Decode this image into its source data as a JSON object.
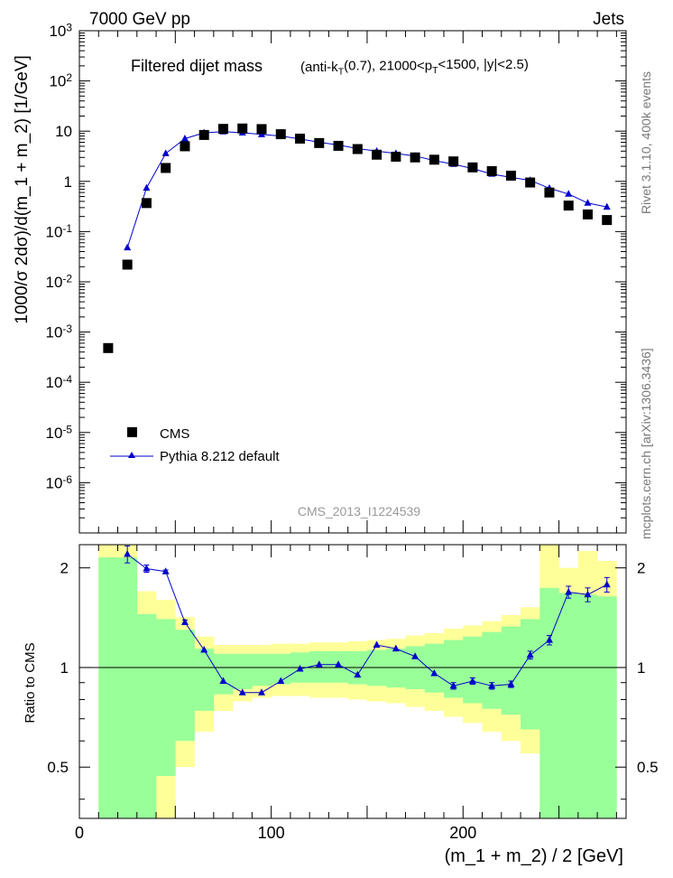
{
  "header": {
    "left": "7000 GeV pp",
    "right": "Jets"
  },
  "side_labels": {
    "rivet": "Rivet 3.1.10,  400k events",
    "mcplots": "mcplots.cern.ch [arXiv:1306.3436]"
  },
  "watermark": "CMS_2013_I1224539",
  "colors": {
    "cms": "#000000",
    "pythia": "#0000cc",
    "band_green": "#99ff99",
    "band_yellow": "#ffff99"
  },
  "chart_data": [
    {
      "type": "scatter",
      "title": "Filtered dijet mass",
      "subtitle": "(anti-k_T(0.7), 21000<p_T<1500, |y|<2.5)",
      "ylabel": "1000/σ 2dσ)/d(m_1 + m_2) [1/GeV]",
      "xlim": [
        0,
        285
      ],
      "ylim": [
        1e-07,
        1000
      ],
      "yscale": "log",
      "ytick_labels": [
        "10^-6",
        "10^-5",
        "10^-4",
        "10^-3",
        "10^-2",
        "10^-1",
        "1",
        "10",
        "10^2",
        "10^3"
      ],
      "x": [
        15,
        25,
        35,
        45,
        55,
        65,
        75,
        85,
        95,
        105,
        115,
        125,
        135,
        145,
        155,
        165,
        175,
        185,
        195,
        205,
        215,
        225,
        235,
        245,
        255,
        265,
        275
      ],
      "series": [
        {
          "name": "CMS",
          "marker": "square",
          "values": [
            0.00048,
            0.022,
            0.37,
            1.85,
            5.0,
            8.4,
            11.1,
            11.3,
            11.0,
            8.7,
            7.1,
            5.8,
            5.1,
            4.4,
            3.4,
            3.1,
            3.0,
            2.7,
            2.5,
            1.9,
            1.6,
            1.3,
            0.95,
            0.6,
            0.33,
            0.22,
            0.17
          ]
        },
        {
          "name": "Pythia 8.212 default",
          "marker": "triangle",
          "values": [
            null,
            0.048,
            0.74,
            3.6,
            7.1,
            9.3,
            9.8,
            9.3,
            8.6,
            8.0,
            7.0,
            6.0,
            5.3,
            4.5,
            4.0,
            3.6,
            3.2,
            2.6,
            2.2,
            1.8,
            1.4,
            1.2,
            1.05,
            0.73,
            0.56,
            0.37,
            0.31
          ]
        }
      ]
    },
    {
      "type": "scatter",
      "title": "",
      "ylabel": "Ratio to CMS",
      "xlabel": "(m_1 + m_2) / 2 [GeV]",
      "xlim": [
        0,
        285
      ],
      "ylim": [
        0.35,
        2.35
      ],
      "yscale": "log",
      "x_ticks": [
        0,
        100,
        200
      ],
      "y_ticks": [
        "0.5",
        "1",
        "2"
      ],
      "reference_line": 1,
      "band_edges": [
        10,
        20,
        30,
        40,
        50,
        60,
        70,
        80,
        90,
        100,
        110,
        120,
        130,
        140,
        150,
        160,
        170,
        180,
        190,
        200,
        210,
        220,
        230,
        240,
        250,
        260,
        270,
        280
      ],
      "band_green": [
        [
          0.35,
          2.15
        ],
        [
          0.35,
          2.15
        ],
        [
          0.35,
          1.45
        ],
        [
          0.47,
          1.4
        ],
        [
          0.6,
          1.3
        ],
        [
          0.74,
          1.14
        ],
        [
          0.83,
          1.1
        ],
        [
          0.86,
          1.1
        ],
        [
          0.88,
          1.1
        ],
        [
          0.89,
          1.1
        ],
        [
          0.9,
          1.11
        ],
        [
          0.9,
          1.12
        ],
        [
          0.9,
          1.12
        ],
        [
          0.89,
          1.12
        ],
        [
          0.88,
          1.13
        ],
        [
          0.87,
          1.14
        ],
        [
          0.86,
          1.16
        ],
        [
          0.84,
          1.18
        ],
        [
          0.81,
          1.21
        ],
        [
          0.78,
          1.24
        ],
        [
          0.75,
          1.28
        ],
        [
          0.72,
          1.33
        ],
        [
          0.65,
          1.4
        ],
        [
          0.35,
          1.74
        ],
        [
          0.35,
          1.68
        ],
        [
          0.35,
          1.66
        ],
        [
          0.35,
          1.64
        ]
      ],
      "band_yellow": [
        [
          0.35,
          2.35
        ],
        [
          0.35,
          2.35
        ],
        [
          0.35,
          1.7
        ],
        [
          0.35,
          1.6
        ],
        [
          0.5,
          1.42
        ],
        [
          0.64,
          1.24
        ],
        [
          0.74,
          1.17
        ],
        [
          0.79,
          1.17
        ],
        [
          0.81,
          1.17
        ],
        [
          0.82,
          1.18
        ],
        [
          0.82,
          1.18
        ],
        [
          0.81,
          1.19
        ],
        [
          0.81,
          1.19
        ],
        [
          0.8,
          1.2
        ],
        [
          0.79,
          1.21
        ],
        [
          0.78,
          1.22
        ],
        [
          0.76,
          1.25
        ],
        [
          0.74,
          1.27
        ],
        [
          0.71,
          1.31
        ],
        [
          0.68,
          1.34
        ],
        [
          0.64,
          1.38
        ],
        [
          0.6,
          1.44
        ],
        [
          0.55,
          1.52
        ],
        [
          0.35,
          2.35
        ],
        [
          0.35,
          2.0
        ],
        [
          0.35,
          2.25
        ],
        [
          0.35,
          2.1
        ]
      ],
      "x": [
        25,
        35,
        45,
        55,
        65,
        75,
        85,
        95,
        105,
        115,
        125,
        135,
        145,
        155,
        165,
        175,
        185,
        195,
        205,
        215,
        225,
        235,
        245,
        255,
        265,
        275
      ],
      "series": [
        {
          "name": "Pythia 8.212 default / CMS",
          "marker": "triangle",
          "values": [
            2.2,
            1.99,
            1.95,
            1.37,
            1.13,
            0.91,
            0.84,
            0.84,
            0.91,
            0.99,
            1.02,
            1.02,
            0.95,
            1.17,
            1.14,
            1.08,
            0.96,
            0.88,
            0.91,
            0.88,
            0.89,
            1.09,
            1.21,
            1.69,
            1.66,
            1.78
          ],
          "errors": [
            0.13,
            0.05,
            0.02,
            0.02,
            0.01,
            0.01,
            0.01,
            0.01,
            0.01,
            0.01,
            0.01,
            0.01,
            0.01,
            0.01,
            0.01,
            0.01,
            0.01,
            0.02,
            0.02,
            0.02,
            0.02,
            0.03,
            0.04,
            0.07,
            0.08,
            0.09
          ]
        }
      ]
    }
  ]
}
